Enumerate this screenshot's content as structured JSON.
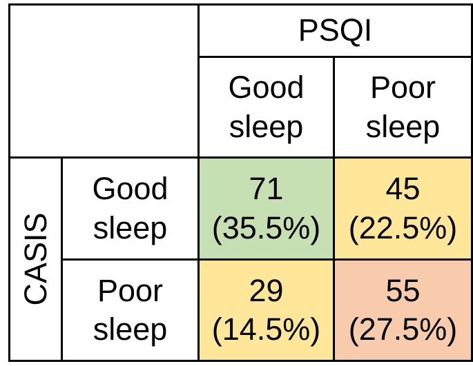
{
  "table": {
    "col_group_label": "PSQI",
    "row_group_label": "CASIS",
    "col_headers": [
      "Good\nsleep",
      "Poor\nsleep"
    ],
    "row_headers": [
      "Good\nsleep",
      "Poor\nsleep"
    ],
    "cells": {
      "good_good": "71\n(35.5%)",
      "good_poor": "45\n(22.5%)",
      "poor_good": "29\n(14.5%)",
      "poor_poor": "55\n(27.5%)"
    }
  },
  "colors": {
    "agreement_good": "#c6e0b4",
    "disagreement": "#ffe699",
    "agreement_poor": "#f8cbad",
    "border": "#000000",
    "background": "#ffffff",
    "text": "#000000"
  },
  "cell_styles": {
    "good_good": "background-color:#c6e0b4",
    "good_poor": "background-color:#ffe699",
    "poor_good": "background-color:#ffe699",
    "poor_poor": "background-color:#f8cbad"
  },
  "chart_data": {
    "type": "table",
    "title": "",
    "column_group": "PSQI",
    "row_group": "CASIS",
    "columns": [
      "Good sleep",
      "Poor sleep"
    ],
    "rows": [
      "Good sleep",
      "Poor sleep"
    ],
    "counts": [
      [
        71,
        45
      ],
      [
        29,
        55
      ]
    ],
    "percentages": [
      [
        35.5,
        22.5
      ],
      [
        14.5,
        27.5
      ]
    ],
    "cell_colors": [
      [
        "#c6e0b4",
        "#ffe699"
      ],
      [
        "#ffe699",
        "#f8cbad"
      ]
    ],
    "layout_hints": {
      "row_group_label_rotated": true,
      "grid": true,
      "empty_top_left_corner": true
    }
  }
}
